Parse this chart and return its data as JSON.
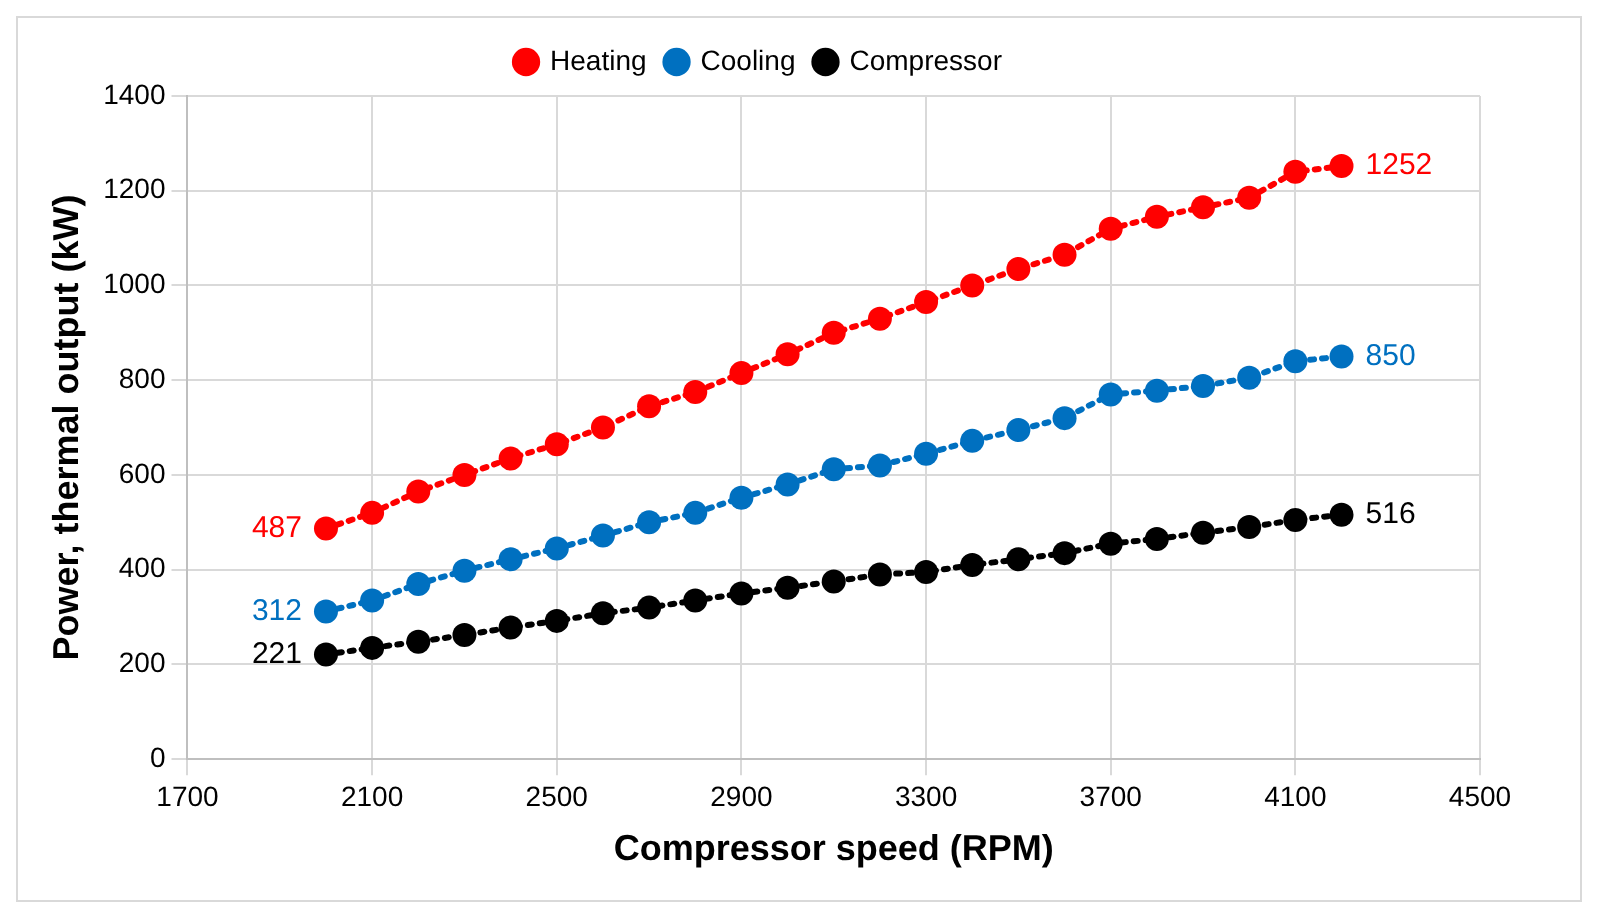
{
  "chart_data": {
    "type": "line",
    "xlabel": "Compressor speed (RPM)",
    "ylabel": "Power, thermal output (kW)",
    "x": [
      2000,
      2100,
      2200,
      2300,
      2400,
      2500,
      2600,
      2700,
      2800,
      2900,
      3000,
      3100,
      3200,
      3300,
      3400,
      3500,
      3600,
      3700,
      3800,
      3900,
      4000,
      4100,
      4200
    ],
    "series": [
      {
        "name": "Heating",
        "color": "#ff0000",
        "values": [
          487,
          520,
          565,
          600,
          635,
          665,
          700,
          745,
          775,
          815,
          855,
          900,
          930,
          965,
          1000,
          1035,
          1065,
          1120,
          1145,
          1165,
          1185,
          1240,
          1252
        ],
        "value_labels": [
          "487",
          null,
          null,
          null,
          null,
          null,
          null,
          null,
          null,
          null,
          null,
          null,
          null,
          null,
          null,
          null,
          null,
          null,
          null,
          null,
          null,
          null,
          "1252"
        ]
      },
      {
        "name": "Cooling",
        "color": "#0070c0",
        "values": [
          312,
          335,
          370,
          398,
          422,
          445,
          472,
          500,
          520,
          552,
          580,
          612,
          620,
          645,
          672,
          695,
          720,
          770,
          778,
          788,
          805,
          840,
          850
        ],
        "value_labels": [
          "312",
          null,
          null,
          null,
          null,
          null,
          null,
          null,
          null,
          null,
          null,
          null,
          null,
          null,
          null,
          null,
          null,
          null,
          null,
          null,
          null,
          null,
          "850"
        ]
      },
      {
        "name": "Compressor",
        "color": "#000000",
        "values": [
          221,
          235,
          248,
          262,
          278,
          292,
          308,
          320,
          335,
          350,
          362,
          375,
          390,
          395,
          410,
          422,
          435,
          455,
          465,
          478,
          490,
          505,
          516
        ],
        "value_labels": [
          "221",
          null,
          null,
          null,
          null,
          null,
          null,
          null,
          null,
          null,
          null,
          null,
          null,
          null,
          null,
          null,
          null,
          null,
          null,
          null,
          null,
          null,
          "516"
        ]
      }
    ],
    "xlim": [
      1700,
      4500
    ],
    "xticks": [
      1700,
      2100,
      2500,
      2900,
      3300,
      3700,
      4100,
      4500
    ],
    "ylim": [
      0,
      1400
    ],
    "yticks": [
      0,
      200,
      400,
      600,
      800,
      1000,
      1200,
      1400
    ],
    "grid": true,
    "legend": "top",
    "marker": "circle",
    "line_style": "dotted"
  }
}
